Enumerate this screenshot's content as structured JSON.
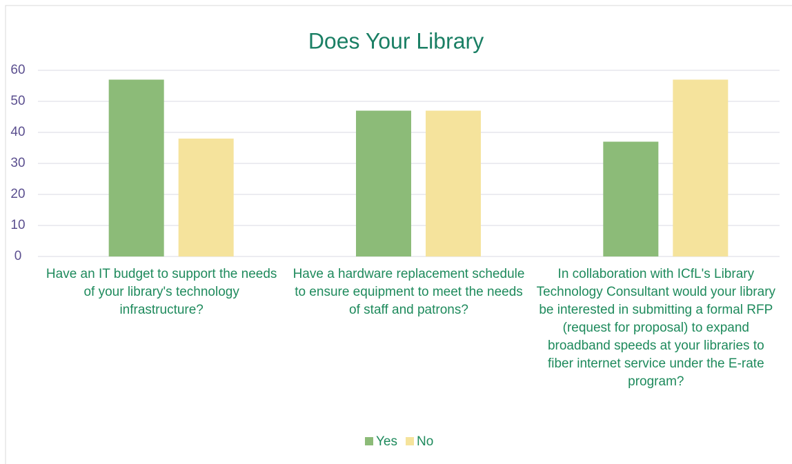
{
  "chart_data": {
    "type": "bar",
    "title": "Does Your Library",
    "categories": [
      "Have an IT budget to support the needs of your library's technology infrastructure?",
      "Have a hardware replacement schedule to ensure equipment to meet the needs of staff and patrons?",
      "In collaboration with ICfL's Library Technology Consultant would your library be interested in submitting a formal RFP (request for proposal) to expand broadband speeds at your libraries to fiber internet service under the E-rate program?"
    ],
    "series": [
      {
        "name": "Yes",
        "color": "#8cbb78",
        "values": [
          57,
          47,
          37
        ]
      },
      {
        "name": "No",
        "color": "#f5e39c",
        "values": [
          38,
          47,
          57
        ]
      }
    ],
    "ylim": [
      0,
      60
    ],
    "yticks": [
      0,
      10,
      20,
      30,
      40,
      50,
      60
    ],
    "grid": true,
    "legend": "bottom"
  }
}
